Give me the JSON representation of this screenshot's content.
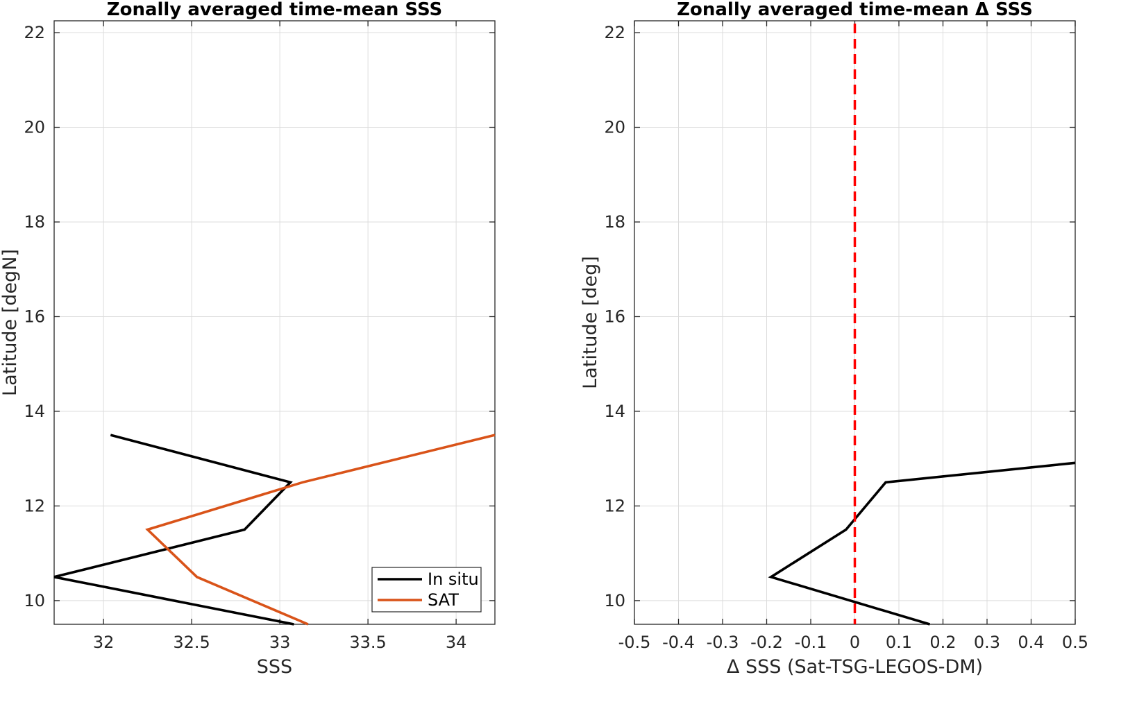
{
  "chart_data": [
    {
      "type": "line",
      "title": "Zonally averaged time-mean SSS",
      "xlabel": "SSS",
      "ylabel": "Latitude [degN]",
      "xlim": [
        31.72,
        34.22
      ],
      "ylim": [
        9.5,
        22.25
      ],
      "xticks": [
        32,
        32.5,
        33,
        33.5,
        34
      ],
      "xtick_labels": [
        "32",
        "32.5",
        "33",
        "33.5",
        "34"
      ],
      "yticks": [
        10,
        12,
        14,
        16,
        18,
        20,
        22
      ],
      "ytick_labels": [
        "10",
        "12",
        "14",
        "16",
        "18",
        "20",
        "22"
      ],
      "grid": true,
      "legend": "bottom-right",
      "series": [
        {
          "name": "In situ",
          "color": "#000000",
          "points": [
            [
              33.08,
              9.5
            ],
            [
              31.72,
              10.5
            ],
            [
              32.8,
              11.5
            ],
            [
              33.06,
              12.5
            ],
            [
              32.04,
              13.5
            ]
          ]
        },
        {
          "name": "SAT",
          "color": "#d95319",
          "points": [
            [
              33.16,
              9.5
            ],
            [
              32.53,
              10.5
            ],
            [
              32.25,
              11.5
            ],
            [
              33.13,
              12.5
            ],
            [
              34.22,
              13.5
            ]
          ]
        }
      ]
    },
    {
      "type": "line",
      "title": "Zonally averaged time-mean Δ SSS",
      "xlabel": "Δ SSS (Sat-TSG-LEGOS-DM)",
      "ylabel": "Latitude [deg]",
      "xlim": [
        -0.5,
        0.5
      ],
      "ylim": [
        9.5,
        22.25
      ],
      "xticks": [
        -0.5,
        -0.4,
        -0.3,
        -0.2,
        -0.1,
        0,
        0.1,
        0.2,
        0.3,
        0.4,
        0.5
      ],
      "xtick_labels": [
        "-0.5",
        "-0.4",
        "-0.3",
        "-0.2",
        "-0.1",
        "0",
        "0.1",
        "0.2",
        "0.3",
        "0.4",
        "0.5"
      ],
      "yticks": [
        10,
        12,
        14,
        16,
        18,
        20,
        22
      ],
      "ytick_labels": [
        "10",
        "12",
        "14",
        "16",
        "18",
        "20",
        "22"
      ],
      "grid": true,
      "reference_line": {
        "x": 0,
        "color": "#ff0000",
        "style": "dashed"
      },
      "series": [
        {
          "color": "#000000",
          "points": [
            [
              0.17,
              9.5
            ],
            [
              -0.19,
              10.5
            ],
            [
              -0.02,
              11.5
            ],
            [
              0.07,
              12.5
            ],
            [
              0.5,
              12.91
            ]
          ]
        }
      ]
    }
  ]
}
